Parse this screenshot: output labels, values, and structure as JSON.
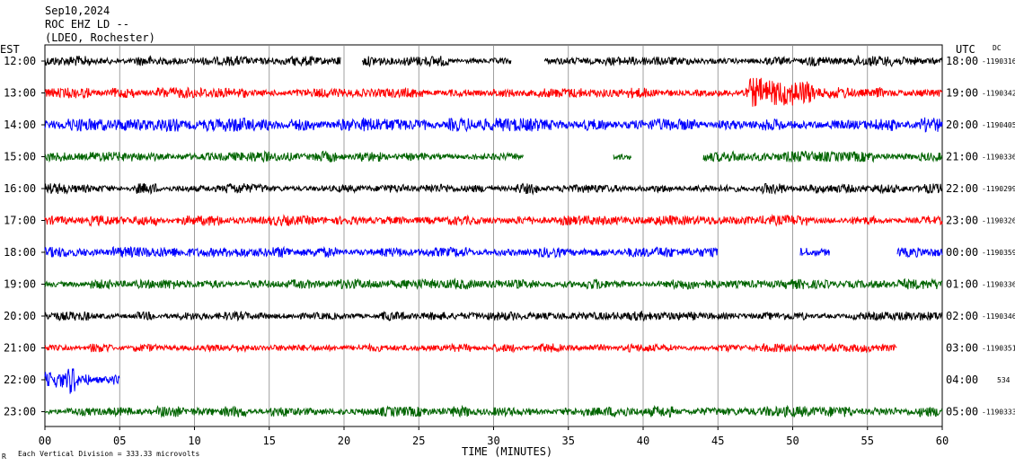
{
  "header": {
    "date": "Sep10,2024",
    "station": "ROC EHZ LD --",
    "network": "(LDEO, Rochester)"
  },
  "left_axis_label": "EST",
  "right_axis_label": "UTC",
  "right_corner_label": "DC",
  "footer": {
    "scale_note": "Each Vertical Division =  333.33 microvolts",
    "corner_mark": "R",
    "xlabel": "TIME (MINUTES)"
  },
  "chart_data": {
    "type": "line",
    "title": "",
    "xlabel": "TIME (MINUTES)",
    "ylabel": "",
    "xlim": [
      0,
      60
    ],
    "x_ticks": [
      "00",
      "05",
      "10",
      "15",
      "20",
      "25",
      "30",
      "35",
      "40",
      "45",
      "50",
      "55",
      "60"
    ],
    "grid": "vertical lines every 5 minutes",
    "series": [
      {
        "est": "12:00",
        "utc": "18:00",
        "value": "-1190316",
        "color": "#000000",
        "amp": 0.6,
        "gaps": [
          [
            19.8,
            21.2
          ],
          [
            31.2,
            33.4
          ]
        ],
        "events": [
          [
            48.2,
            52.5,
            1.2
          ]
        ]
      },
      {
        "est": "13:00",
        "utc": "19:00",
        "value": "-1190342",
        "color": "#ff0000",
        "amp": 0.6,
        "gaps": [],
        "events": [
          [
            47.0,
            51.5,
            3.5
          ],
          [
            51.5,
            56.0,
            1.6
          ]
        ]
      },
      {
        "est": "14:00",
        "utc": "20:00",
        "value": "-1190405",
        "color": "#0000ff",
        "amp": 0.8,
        "gaps": [],
        "events": [
          [
            0.0,
            4.0,
            1.3
          ]
        ]
      },
      {
        "est": "15:00",
        "utc": "21:00",
        "value": "-1190336",
        "color": "#006400",
        "amp": 0.6,
        "gaps": [
          [
            32.0,
            38.0
          ],
          [
            39.2,
            44.0
          ]
        ],
        "events": [
          [
            44.0,
            46.5,
            1.6
          ]
        ]
      },
      {
        "est": "16:00",
        "utc": "22:00",
        "value": "-1190299",
        "color": "#000000",
        "amp": 0.6,
        "gaps": [],
        "events": []
      },
      {
        "est": "17:00",
        "utc": "23:00",
        "value": "-1190326",
        "color": "#ff0000",
        "amp": 0.6,
        "gaps": [],
        "events": []
      },
      {
        "est": "18:00",
        "utc": "00:00",
        "value": "-1190359",
        "color": "#0000ff",
        "amp": 0.6,
        "gaps": [
          [
            45.0,
            50.5
          ],
          [
            52.5,
            57.0
          ]
        ],
        "events": []
      },
      {
        "est": "19:00",
        "utc": "01:00",
        "value": "-1190336",
        "color": "#006400",
        "amp": 0.6,
        "gaps": [],
        "events": []
      },
      {
        "est": "20:00",
        "utc": "02:00",
        "value": "-1190346",
        "color": "#000000",
        "amp": 0.5,
        "gaps": [],
        "events": []
      },
      {
        "est": "21:00",
        "utc": "03:00",
        "value": "-1190351",
        "color": "#ff0000",
        "amp": 0.5,
        "gaps": [
          [
            57.0,
            60.0
          ]
        ],
        "events": []
      },
      {
        "est": "22:00",
        "utc": "04:00",
        "value": "534",
        "color": "#0000ff",
        "amp": 0.5,
        "gaps": [
          [
            5.0,
            60.0
          ]
        ],
        "events": [
          [
            0.0,
            2.0,
            3.5
          ],
          [
            2.0,
            5.0,
            1.4
          ]
        ]
      },
      {
        "est": "23:00",
        "utc": "05:00",
        "value": "-1190333",
        "color": "#006400",
        "amp": 0.6,
        "gaps": [],
        "events": []
      }
    ]
  }
}
